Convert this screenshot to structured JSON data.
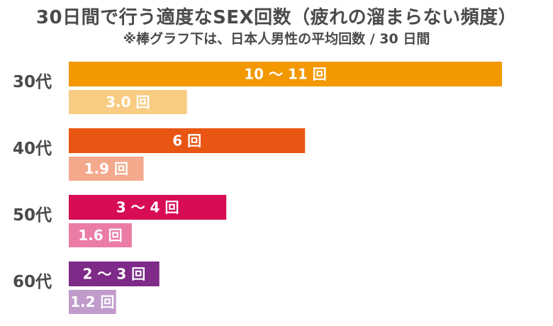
{
  "title": "30日間で行う適度なSEX回数（疲れの溜まらない頻度）",
  "subtitle": "※棒グラフ下は、日本人男性の平均回数 / 30 日間",
  "chart_data": {
    "type": "bar",
    "orientation": "horizontal",
    "title": "30日間で行う適度なSEX回数（疲れの溜まらない頻度）",
    "subtitle": "※棒グラフ下は、日本人男性の平均回数 / 30 日間",
    "xlim": [
      0,
      11
    ],
    "grid": false,
    "categories": [
      "30代",
      "40代",
      "50代",
      "60代"
    ],
    "series": [
      {
        "values": [
          11,
          6,
          4,
          2.3
        ],
        "labels": [
          "10 ～ 11 回",
          "6 回",
          "3 ～ 4 回",
          "2 ～ 3 回"
        ],
        "colors": [
          "#F39800",
          "#E95513",
          "#D70C55",
          "#7D2A88"
        ]
      },
      {
        "values": [
          3.0,
          1.9,
          1.6,
          1.2
        ],
        "labels": [
          "3.0 回",
          "1.9 回",
          "1.6 回",
          "1.2 回"
        ],
        "colors": [
          "#F9CC83",
          "#F4A98C",
          "#EB7CA6",
          "#C09BCB"
        ]
      }
    ]
  }
}
